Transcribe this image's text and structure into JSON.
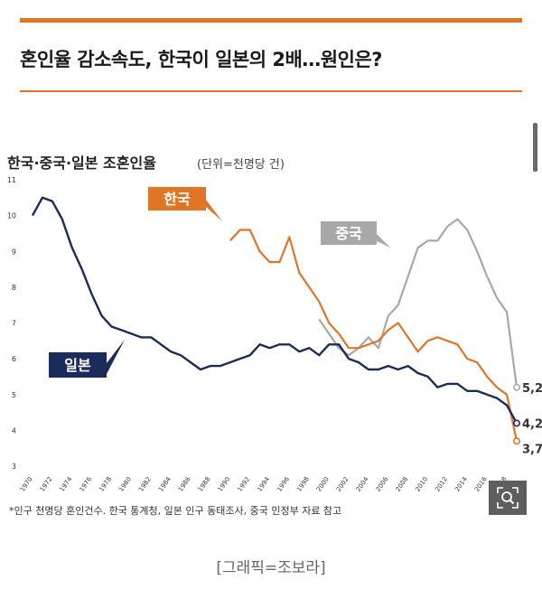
{
  "article": {
    "headline": "혼인율 감소속도, 한국이 일본의 2배…원인은?",
    "credit": "[그래픽=조보라]"
  },
  "colors": {
    "accent": "#e07526",
    "korea": "#e07526",
    "china": "#a8a8a8",
    "japan": "#1c2c5a"
  },
  "icons": {
    "zoom": "zoom-magnifier-icon"
  },
  "chart_data": {
    "type": "line",
    "title": "한국·중국·일본 조혼인율",
    "unit_label": "(단위=천명당 건)",
    "source_note": "*인구 천명당 혼인건수. 한국 통계청, 일본 인구 동태조사, 중국 민정부 자료 참고",
    "xlim": [
      1970,
      2019
    ],
    "ylim": [
      3,
      11
    ],
    "y_ticks": [
      3,
      4,
      5,
      6,
      7,
      8,
      9,
      10,
      11
    ],
    "x_ticks": [
      1970,
      1972,
      1974,
      1976,
      1978,
      1980,
      1982,
      1984,
      1986,
      1988,
      1990,
      1992,
      1994,
      1996,
      1998,
      2000,
      2002,
      2004,
      2006,
      2008,
      2010,
      2012,
      2014,
      2016,
      2018
    ],
    "x_tick_labels": [
      "1970",
      "1972",
      "1974",
      "1976",
      "1978",
      "1980",
      "1982",
      "1984",
      "1986",
      "1988",
      "1990",
      "1992",
      "1994",
      "1996",
      "1998",
      "2000",
      "2002",
      "2004",
      "2006",
      "2008",
      "2010",
      "2012",
      "2014",
      "2016",
      "2018"
    ],
    "grid": false,
    "series": [
      {
        "name": "일본",
        "end_label": "4,2",
        "x": [
          1970,
          1971,
          1972,
          1973,
          1974,
          1975,
          1976,
          1977,
          1978,
          1979,
          1980,
          1981,
          1982,
          1983,
          1984,
          1985,
          1986,
          1987,
          1988,
          1989,
          1990,
          1991,
          1992,
          1993,
          1994,
          1995,
          1996,
          1997,
          1998,
          1999,
          2000,
          2001,
          2002,
          2003,
          2004,
          2005,
          2006,
          2007,
          2008,
          2009,
          2010,
          2011,
          2012,
          2013,
          2014,
          2015,
          2016,
          2017,
          2018,
          2019
        ],
        "y": [
          10.0,
          10.5,
          10.4,
          9.9,
          9.1,
          8.5,
          7.8,
          7.2,
          6.9,
          6.8,
          6.7,
          6.6,
          6.6,
          6.4,
          6.2,
          6.1,
          5.9,
          5.7,
          5.8,
          5.8,
          5.9,
          6.0,
          6.1,
          6.4,
          6.3,
          6.4,
          6.4,
          6.2,
          6.3,
          6.1,
          6.4,
          6.4,
          6.0,
          5.9,
          5.7,
          5.7,
          5.8,
          5.7,
          5.8,
          5.6,
          5.5,
          5.2,
          5.3,
          5.3,
          5.1,
          5.1,
          5.0,
          4.9,
          4.7,
          4.2
        ]
      },
      {
        "name": "한국",
        "end_label": "3,7",
        "x": [
          1990,
          1991,
          1992,
          1993,
          1994,
          1995,
          1996,
          1997,
          1998,
          1999,
          2000,
          2001,
          2002,
          2003,
          2004,
          2005,
          2006,
          2007,
          2008,
          2009,
          2010,
          2011,
          2012,
          2013,
          2014,
          2015,
          2016,
          2017,
          2018,
          2019
        ],
        "y": [
          9.3,
          9.6,
          9.6,
          9.0,
          8.7,
          8.7,
          9.4,
          8.4,
          8.0,
          7.6,
          7.0,
          6.7,
          6.3,
          6.3,
          6.4,
          6.5,
          6.8,
          7.0,
          6.6,
          6.2,
          6.5,
          6.6,
          6.5,
          6.4,
          6.0,
          5.9,
          5.5,
          5.2,
          5.0,
          3.7
        ]
      },
      {
        "name": "중국",
        "end_label": "5,2",
        "x": [
          1999,
          2000,
          2001,
          2002,
          2003,
          2004,
          2005,
          2006,
          2007,
          2008,
          2009,
          2010,
          2011,
          2012,
          2013,
          2014,
          2015,
          2016,
          2017,
          2018,
          2019
        ],
        "y": [
          7.1,
          6.7,
          6.3,
          6.1,
          6.3,
          6.6,
          6.3,
          7.2,
          7.5,
          8.3,
          9.1,
          9.3,
          9.3,
          9.7,
          9.9,
          9.6,
          9.0,
          8.3,
          7.7,
          7.3,
          5.2
        ]
      }
    ]
  }
}
